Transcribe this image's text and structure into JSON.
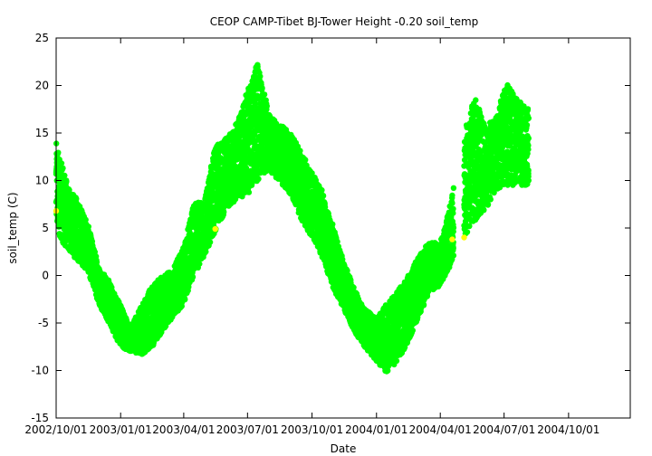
{
  "chart_data": {
    "type": "scatter",
    "title": "CEOP CAMP-Tibet BJ-Tower Height -0.20 soil_temp",
    "xlabel": "Date",
    "ylabel": "soil_temp (C)",
    "xlim": [
      "2002-10-01",
      "2004-12-28"
    ],
    "ylim": [
      -15,
      25
    ],
    "x_tick_labels": [
      "2002/10/01",
      "2003/01/01",
      "2003/04/01",
      "2003/07/01",
      "2003/10/01",
      "2004/01/01",
      "2004/04/01",
      "2004/07/01",
      "2004/10/01"
    ],
    "y_tick_labels": [
      "25",
      "20",
      "15",
      "10",
      "5",
      "0",
      "-5",
      "-10",
      "-15"
    ],
    "grid": false,
    "legend": "none",
    "colors": {
      "main_series": "#00ff00",
      "highlight_points": "#ffff00"
    },
    "series": [
      {
        "marker": "dot",
        "color": "#00ff00",
        "note_visual": "dense daily-cycle cloud; envelope read from axes",
        "envelope": [
          {
            "date": "2002-10-01",
            "low": 5.0,
            "high": 14.0
          },
          {
            "date": "2002-10-10",
            "low": 3.5,
            "high": 11.5
          },
          {
            "date": "2002-10-20",
            "low": 2.5,
            "high": 9.0
          },
          {
            "date": "2002-11-01",
            "low": 1.5,
            "high": 8.0
          },
          {
            "date": "2002-11-15",
            "low": 0.5,
            "high": 5.5
          },
          {
            "date": "2002-12-01",
            "low": -3.0,
            "high": 1.0
          },
          {
            "date": "2002-12-15",
            "low": -5.0,
            "high": -0.5
          },
          {
            "date": "2003-01-01",
            "low": -7.5,
            "high": -3.0
          },
          {
            "date": "2003-01-15",
            "low": -8.0,
            "high": -5.5
          },
          {
            "date": "2003-02-01",
            "low": -8.3,
            "high": -3.0
          },
          {
            "date": "2003-02-15",
            "low": -7.5,
            "high": -1.0
          },
          {
            "date": "2003-03-01",
            "low": -6.0,
            "high": 0.0
          },
          {
            "date": "2003-03-15",
            "low": -4.5,
            "high": 0.5
          },
          {
            "date": "2003-04-01",
            "low": -3.0,
            "high": 3.0
          },
          {
            "date": "2003-04-15",
            "low": 0.0,
            "high": 7.5
          },
          {
            "date": "2003-05-01",
            "low": 2.0,
            "high": 8.0
          },
          {
            "date": "2003-05-15",
            "low": 4.5,
            "high": 13.5
          },
          {
            "date": "2003-06-01",
            "low": 7.0,
            "high": 14.5
          },
          {
            "date": "2003-06-15",
            "low": 8.0,
            "high": 16.0
          },
          {
            "date": "2003-07-01",
            "low": 8.5,
            "high": 19.5
          },
          {
            "date": "2003-07-15",
            "low": 10.0,
            "high": 22.3
          },
          {
            "date": "2003-08-01",
            "low": 11.0,
            "high": 17.0
          },
          {
            "date": "2003-08-15",
            "low": 10.0,
            "high": 16.0
          },
          {
            "date": "2003-09-01",
            "low": 8.5,
            "high": 15.0
          },
          {
            "date": "2003-09-15",
            "low": 6.0,
            "high": 13.0
          },
          {
            "date": "2003-10-01",
            "low": 4.0,
            "high": 11.0
          },
          {
            "date": "2003-10-15",
            "low": 2.0,
            "high": 9.0
          },
          {
            "date": "2003-11-01",
            "low": -1.5,
            "high": 5.0
          },
          {
            "date": "2003-11-15",
            "low": -3.5,
            "high": 1.5
          },
          {
            "date": "2003-12-01",
            "low": -6.0,
            "high": -1.5
          },
          {
            "date": "2003-12-15",
            "low": -7.5,
            "high": -3.5
          },
          {
            "date": "2004-01-01",
            "low": -9.0,
            "high": -4.5
          },
          {
            "date": "2004-01-15",
            "low": -10.2,
            "high": -3.0
          },
          {
            "date": "2004-02-01",
            "low": -9.0,
            "high": -1.5
          },
          {
            "date": "2004-02-15",
            "low": -7.0,
            "high": 0.0
          },
          {
            "date": "2004-03-01",
            "low": -4.5,
            "high": 2.0
          },
          {
            "date": "2004-03-15",
            "low": -2.0,
            "high": 3.5
          },
          {
            "date": "2004-04-01",
            "low": -1.0,
            "high": 3.5
          },
          {
            "date": "2004-04-15",
            "low": 1.0,
            "high": 7.5
          },
          {
            "date": "2004-05-05",
            "low": 4.0,
            "high": 15.0
          },
          {
            "date": "2004-05-20",
            "low": 5.5,
            "high": 19.0
          },
          {
            "date": "2004-06-05",
            "low": 7.0,
            "high": 15.5
          },
          {
            "date": "2004-06-20",
            "low": 9.0,
            "high": 17.0
          },
          {
            "date": "2004-07-05",
            "low": 9.5,
            "high": 20.3
          },
          {
            "date": "2004-07-20",
            "low": 9.5,
            "high": 18.5
          },
          {
            "date": "2004-08-05",
            "low": 9.5,
            "high": 17.5
          }
        ],
        "gap": [
          "2004-04-20",
          "2004-05-05"
        ]
      },
      {
        "marker": "dot",
        "color": "#ffff00",
        "points": [
          {
            "date": "2002-10-01",
            "value": 6.8
          },
          {
            "date": "2003-05-16",
            "value": 4.9
          },
          {
            "date": "2004-04-18",
            "value": 3.8
          },
          {
            "date": "2004-05-05",
            "value": 4.0
          }
        ]
      }
    ]
  }
}
